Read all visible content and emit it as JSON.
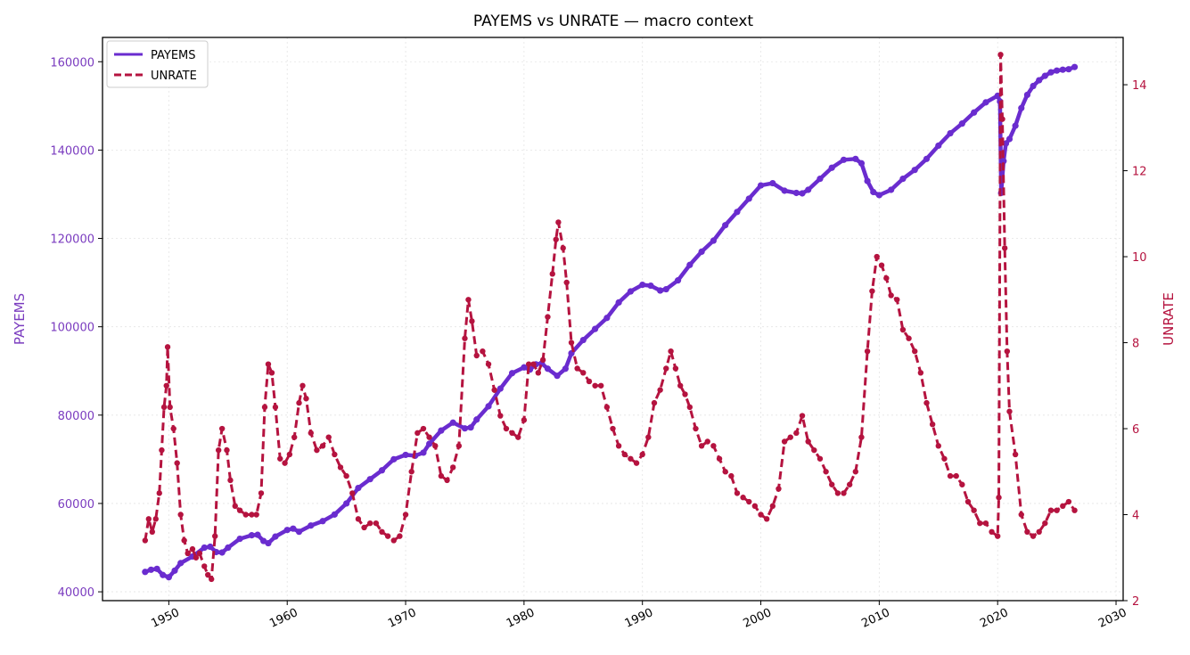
{
  "chart_data": {
    "type": "line",
    "title": "PAYEMS vs UNRATE — macro context",
    "xlabel": "",
    "ylabel_left": "PAYEMS",
    "ylabel_right": "UNRATE",
    "xlim": [
      1944.4,
      2030.6
    ],
    "ylim_left": [
      38000,
      165500
    ],
    "ylim_right": [
      2.0,
      15.1
    ],
    "x_ticks": [
      1950,
      1960,
      1970,
      1980,
      1990,
      2000,
      2010,
      2020,
      2030
    ],
    "y_left_ticks": [
      40000,
      60000,
      80000,
      100000,
      120000,
      140000,
      160000
    ],
    "y_right_ticks": [
      2,
      4,
      6,
      8,
      10,
      12,
      14
    ],
    "grid": true,
    "legend_position": "top-left",
    "colors": {
      "payems": "#6a2ccf",
      "unrate": "#b5133f",
      "left_axis": "#7a3bbf",
      "right_axis": "#b5133f"
    },
    "series": [
      {
        "name": "PAYEMS",
        "axis": "left",
        "style": "solid",
        "points": [
          [
            1948.0,
            44500
          ],
          [
            1948.5,
            45000
          ],
          [
            1949.0,
            45200
          ],
          [
            1949.5,
            43800
          ],
          [
            1950.0,
            43300
          ],
          [
            1950.5,
            44800
          ],
          [
            1951.0,
            46500
          ],
          [
            1952.0,
            48000
          ],
          [
            1953.0,
            50000
          ],
          [
            1953.5,
            50200
          ],
          [
            1954.0,
            49000
          ],
          [
            1954.5,
            48900
          ],
          [
            1955.0,
            50000
          ],
          [
            1956.0,
            52000
          ],
          [
            1957.0,
            52800
          ],
          [
            1957.5,
            52900
          ],
          [
            1958.0,
            51500
          ],
          [
            1958.4,
            51000
          ],
          [
            1959.0,
            52500
          ],
          [
            1960.0,
            54000
          ],
          [
            1960.5,
            54300
          ],
          [
            1961.0,
            53600
          ],
          [
            1962.0,
            55000
          ],
          [
            1963.0,
            56000
          ],
          [
            1964.0,
            57500
          ],
          [
            1965.0,
            60000
          ],
          [
            1966.0,
            63500
          ],
          [
            1967.0,
            65500
          ],
          [
            1968.0,
            67500
          ],
          [
            1969.0,
            70000
          ],
          [
            1970.0,
            71000
          ],
          [
            1970.8,
            70800
          ],
          [
            1971.5,
            71500
          ],
          [
            1972.0,
            73500
          ],
          [
            1973.0,
            76500
          ],
          [
            1974.0,
            78300
          ],
          [
            1975.0,
            77000
          ],
          [
            1975.5,
            77200
          ],
          [
            1976.0,
            79000
          ],
          [
            1977.0,
            82000
          ],
          [
            1978.0,
            86000
          ],
          [
            1979.0,
            89500
          ],
          [
            1980.0,
            90800
          ],
          [
            1980.5,
            90300
          ],
          [
            1981.0,
            91500
          ],
          [
            1981.5,
            91700
          ],
          [
            1982.0,
            90500
          ],
          [
            1982.8,
            88900
          ],
          [
            1983.5,
            90500
          ],
          [
            1984.0,
            94000
          ],
          [
            1985.0,
            97000
          ],
          [
            1986.0,
            99500
          ],
          [
            1987.0,
            102000
          ],
          [
            1988.0,
            105500
          ],
          [
            1989.0,
            108000
          ],
          [
            1990.0,
            109500
          ],
          [
            1990.7,
            109300
          ],
          [
            1991.5,
            108200
          ],
          [
            1992.0,
            108500
          ],
          [
            1993.0,
            110500
          ],
          [
            1994.0,
            114000
          ],
          [
            1995.0,
            117000
          ],
          [
            1996.0,
            119500
          ],
          [
            1997.0,
            123000
          ],
          [
            1998.0,
            126000
          ],
          [
            1999.0,
            129000
          ],
          [
            2000.0,
            132000
          ],
          [
            2001.0,
            132500
          ],
          [
            2002.0,
            130800
          ],
          [
            2003.0,
            130300
          ],
          [
            2003.5,
            130200
          ],
          [
            2004.0,
            131000
          ],
          [
            2005.0,
            133500
          ],
          [
            2006.0,
            136000
          ],
          [
            2007.0,
            137800
          ],
          [
            2008.0,
            138000
          ],
          [
            2008.5,
            137000
          ],
          [
            2009.0,
            133000
          ],
          [
            2009.5,
            130500
          ],
          [
            2010.0,
            129800
          ],
          [
            2011.0,
            131000
          ],
          [
            2012.0,
            133500
          ],
          [
            2013.0,
            135500
          ],
          [
            2014.0,
            138000
          ],
          [
            2015.0,
            141000
          ],
          [
            2016.0,
            143800
          ],
          [
            2017.0,
            146000
          ],
          [
            2018.0,
            148500
          ],
          [
            2019.0,
            150800
          ],
          [
            2020.0,
            152300
          ],
          [
            2020.2,
            151000
          ],
          [
            2020.3,
            130300
          ],
          [
            2020.5,
            137500
          ],
          [
            2020.7,
            141500
          ],
          [
            2021.0,
            142500
          ],
          [
            2021.5,
            145500
          ],
          [
            2022.0,
            149500
          ],
          [
            2022.5,
            152500
          ],
          [
            2023.0,
            154500
          ],
          [
            2023.5,
            155800
          ],
          [
            2024.0,
            156800
          ],
          [
            2024.5,
            157600
          ],
          [
            2025.0,
            158000
          ],
          [
            2025.5,
            158200
          ],
          [
            2026.0,
            158300
          ],
          [
            2026.5,
            158800
          ]
        ]
      },
      {
        "name": "UNRATE",
        "axis": "right",
        "style": "dashed",
        "points": [
          [
            1948.0,
            3.4
          ],
          [
            1948.3,
            3.9
          ],
          [
            1948.6,
            3.6
          ],
          [
            1948.9,
            3.9
          ],
          [
            1949.2,
            4.5
          ],
          [
            1949.4,
            5.5
          ],
          [
            1949.6,
            6.5
          ],
          [
            1949.8,
            7.0
          ],
          [
            1949.9,
            7.9
          ],
          [
            1950.1,
            6.5
          ],
          [
            1950.4,
            6.0
          ],
          [
            1950.7,
            5.2
          ],
          [
            1951.0,
            4.0
          ],
          [
            1951.3,
            3.4
          ],
          [
            1951.6,
            3.1
          ],
          [
            1952.0,
            3.2
          ],
          [
            1952.3,
            3.0
          ],
          [
            1952.6,
            3.1
          ],
          [
            1953.0,
            2.8
          ],
          [
            1953.3,
            2.6
          ],
          [
            1953.6,
            2.5
          ],
          [
            1953.9,
            3.5
          ],
          [
            1954.2,
            5.5
          ],
          [
            1954.5,
            6.0
          ],
          [
            1954.9,
            5.5
          ],
          [
            1955.2,
            4.8
          ],
          [
            1955.6,
            4.2
          ],
          [
            1956.0,
            4.1
          ],
          [
            1956.5,
            4.0
          ],
          [
            1957.0,
            4.0
          ],
          [
            1957.4,
            4.0
          ],
          [
            1957.8,
            4.5
          ],
          [
            1958.1,
            6.5
          ],
          [
            1958.4,
            7.5
          ],
          [
            1958.7,
            7.3
          ],
          [
            1959.0,
            6.5
          ],
          [
            1959.4,
            5.3
          ],
          [
            1959.8,
            5.2
          ],
          [
            1960.2,
            5.4
          ],
          [
            1960.6,
            5.8
          ],
          [
            1961.0,
            6.6
          ],
          [
            1961.3,
            7.0
          ],
          [
            1961.6,
            6.7
          ],
          [
            1962.0,
            5.9
          ],
          [
            1962.5,
            5.5
          ],
          [
            1963.0,
            5.6
          ],
          [
            1963.5,
            5.8
          ],
          [
            1964.0,
            5.4
          ],
          [
            1964.5,
            5.1
          ],
          [
            1965.0,
            4.9
          ],
          [
            1965.5,
            4.5
          ],
          [
            1966.0,
            3.9
          ],
          [
            1966.5,
            3.7
          ],
          [
            1967.0,
            3.8
          ],
          [
            1967.5,
            3.8
          ],
          [
            1968.0,
            3.6
          ],
          [
            1968.5,
            3.5
          ],
          [
            1969.0,
            3.4
          ],
          [
            1969.5,
            3.5
          ],
          [
            1970.0,
            4.0
          ],
          [
            1970.5,
            5.0
          ],
          [
            1971.0,
            5.9
          ],
          [
            1971.5,
            6.0
          ],
          [
            1972.0,
            5.8
          ],
          [
            1972.5,
            5.6
          ],
          [
            1973.0,
            4.9
          ],
          [
            1973.5,
            4.8
          ],
          [
            1974.0,
            5.1
          ],
          [
            1974.5,
            5.6
          ],
          [
            1975.0,
            8.1
          ],
          [
            1975.3,
            9.0
          ],
          [
            1975.6,
            8.5
          ],
          [
            1976.0,
            7.7
          ],
          [
            1976.5,
            7.8
          ],
          [
            1977.0,
            7.5
          ],
          [
            1977.5,
            6.9
          ],
          [
            1978.0,
            6.3
          ],
          [
            1978.5,
            6.0
          ],
          [
            1979.0,
            5.9
          ],
          [
            1979.5,
            5.8
          ],
          [
            1980.0,
            6.2
          ],
          [
            1980.4,
            7.5
          ],
          [
            1980.8,
            7.5
          ],
          [
            1981.2,
            7.3
          ],
          [
            1981.6,
            7.6
          ],
          [
            1982.0,
            8.6
          ],
          [
            1982.4,
            9.6
          ],
          [
            1982.7,
            10.4
          ],
          [
            1982.9,
            10.8
          ],
          [
            1983.3,
            10.2
          ],
          [
            1983.6,
            9.4
          ],
          [
            1984.0,
            8.0
          ],
          [
            1984.5,
            7.4
          ],
          [
            1985.0,
            7.3
          ],
          [
            1985.5,
            7.1
          ],
          [
            1986.0,
            7.0
          ],
          [
            1986.5,
            7.0
          ],
          [
            1987.0,
            6.5
          ],
          [
            1987.5,
            6.0
          ],
          [
            1988.0,
            5.6
          ],
          [
            1988.5,
            5.4
          ],
          [
            1989.0,
            5.3
          ],
          [
            1989.5,
            5.2
          ],
          [
            1990.0,
            5.4
          ],
          [
            1990.5,
            5.8
          ],
          [
            1991.0,
            6.6
          ],
          [
            1991.5,
            6.9
          ],
          [
            1992.0,
            7.4
          ],
          [
            1992.4,
            7.8
          ],
          [
            1992.8,
            7.4
          ],
          [
            1993.2,
            7.0
          ],
          [
            1993.6,
            6.8
          ],
          [
            1994.0,
            6.5
          ],
          [
            1994.5,
            6.0
          ],
          [
            1995.0,
            5.6
          ],
          [
            1995.5,
            5.7
          ],
          [
            1996.0,
            5.6
          ],
          [
            1996.5,
            5.3
          ],
          [
            1997.0,
            5.0
          ],
          [
            1997.5,
            4.9
          ],
          [
            1998.0,
            4.5
          ],
          [
            1998.5,
            4.4
          ],
          [
            1999.0,
            4.3
          ],
          [
            1999.5,
            4.2
          ],
          [
            2000.0,
            4.0
          ],
          [
            2000.5,
            3.9
          ],
          [
            2001.0,
            4.2
          ],
          [
            2001.5,
            4.6
          ],
          [
            2002.0,
            5.7
          ],
          [
            2002.5,
            5.8
          ],
          [
            2003.0,
            5.9
          ],
          [
            2003.5,
            6.3
          ],
          [
            2004.0,
            5.7
          ],
          [
            2004.5,
            5.5
          ],
          [
            2005.0,
            5.3
          ],
          [
            2005.5,
            5.0
          ],
          [
            2006.0,
            4.7
          ],
          [
            2006.5,
            4.5
          ],
          [
            2007.0,
            4.5
          ],
          [
            2007.5,
            4.7
          ],
          [
            2008.0,
            5.0
          ],
          [
            2008.5,
            5.8
          ],
          [
            2009.0,
            7.8
          ],
          [
            2009.4,
            9.2
          ],
          [
            2009.8,
            10.0
          ],
          [
            2010.2,
            9.8
          ],
          [
            2010.6,
            9.5
          ],
          [
            2011.0,
            9.1
          ],
          [
            2011.5,
            9.0
          ],
          [
            2012.0,
            8.3
          ],
          [
            2012.5,
            8.1
          ],
          [
            2013.0,
            7.8
          ],
          [
            2013.5,
            7.3
          ],
          [
            2014.0,
            6.6
          ],
          [
            2014.5,
            6.1
          ],
          [
            2015.0,
            5.6
          ],
          [
            2015.5,
            5.3
          ],
          [
            2016.0,
            4.9
          ],
          [
            2016.5,
            4.9
          ],
          [
            2017.0,
            4.7
          ],
          [
            2017.5,
            4.3
          ],
          [
            2018.0,
            4.1
          ],
          [
            2018.5,
            3.8
          ],
          [
            2019.0,
            3.8
          ],
          [
            2019.5,
            3.6
          ],
          [
            2020.0,
            3.5
          ],
          [
            2020.1,
            4.4
          ],
          [
            2020.25,
            14.7
          ],
          [
            2020.4,
            13.2
          ],
          [
            2020.6,
            10.2
          ],
          [
            2020.8,
            7.8
          ],
          [
            2021.0,
            6.4
          ],
          [
            2021.5,
            5.4
          ],
          [
            2022.0,
            4.0
          ],
          [
            2022.5,
            3.6
          ],
          [
            2023.0,
            3.5
          ],
          [
            2023.5,
            3.6
          ],
          [
            2024.0,
            3.8
          ],
          [
            2024.5,
            4.1
          ],
          [
            2025.0,
            4.1
          ],
          [
            2025.5,
            4.2
          ],
          [
            2026.0,
            4.3
          ],
          [
            2026.5,
            4.1
          ]
        ]
      }
    ]
  }
}
